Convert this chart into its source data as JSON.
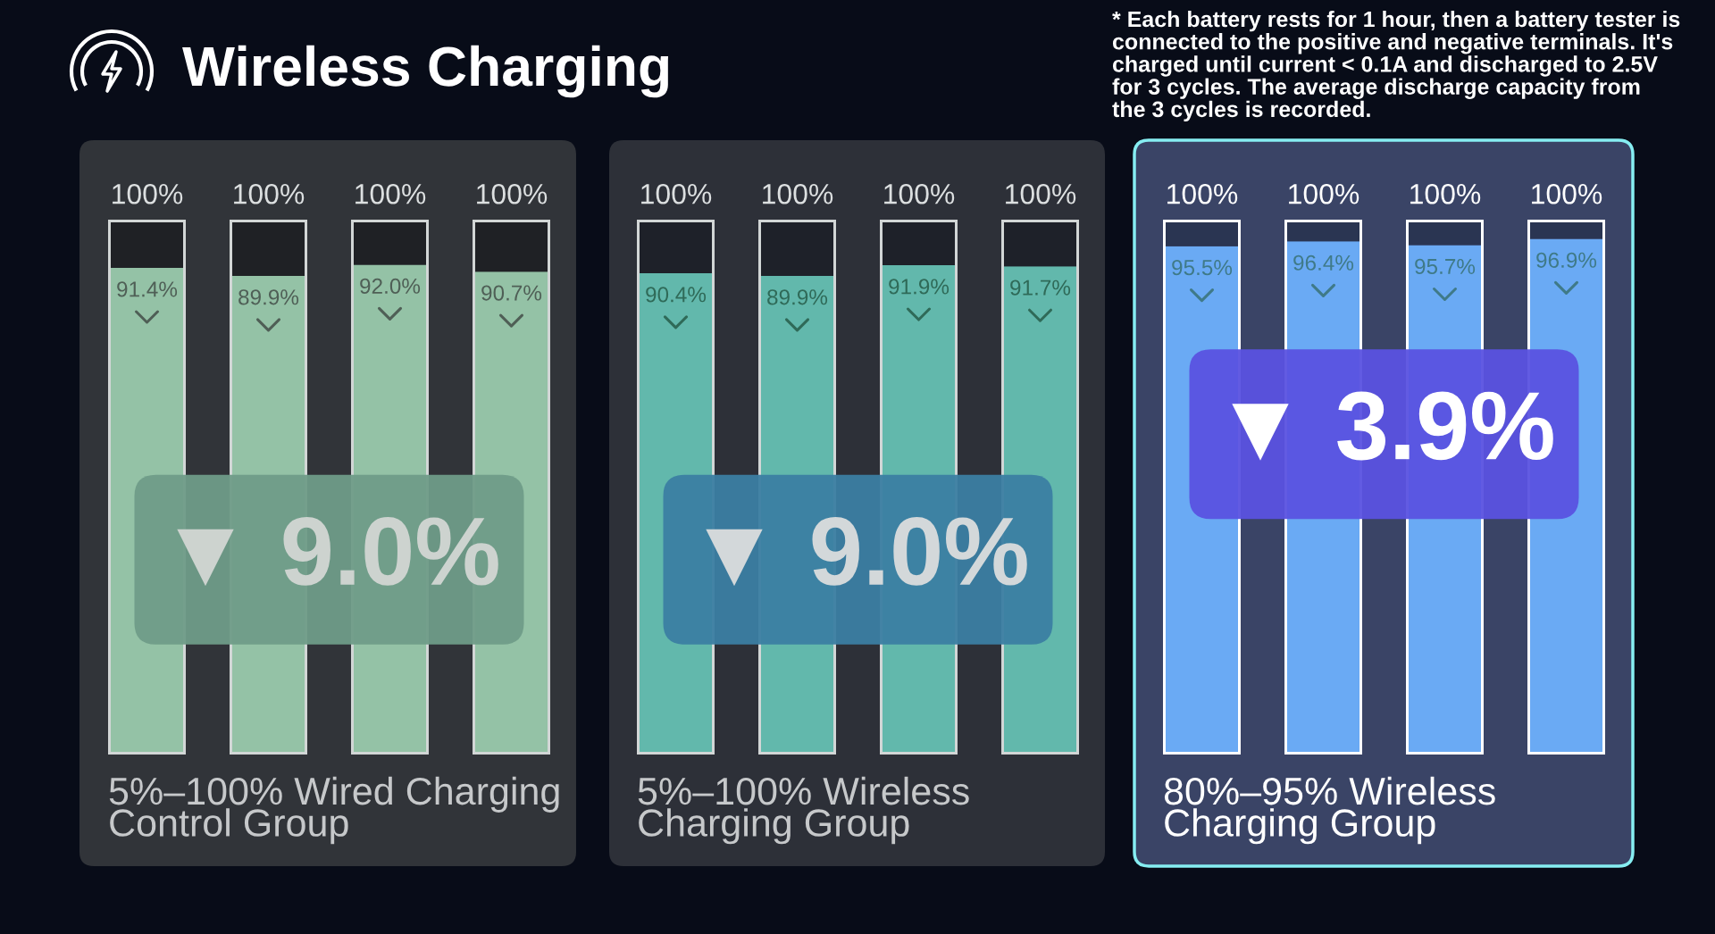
{
  "chart_data": [
    {
      "type": "bar",
      "title": "Wireless Charging",
      "categories": [
        null,
        null,
        null,
        null
      ],
      "stacked": true,
      "series": [
        {
          "color": "#94c2a6",
          "values": [
            91.4,
            89.9,
            92.0,
            90.7
          ],
          "value_labels": [
            "91.4%",
            "89.9%",
            "92.0%",
            "90.7%"
          ]
        },
        {
          "color": "#1f2125",
          "values": [
            8.6,
            10.1,
            8.0,
            9.3
          ]
        }
      ],
      "totals": [
        "100%",
        "100%",
        "100%",
        "100%"
      ],
      "ylim": [
        0,
        100
      ],
      "tick_labels": false,
      "xlabel": "5%–100% Wired Charging\nControl Group",
      "annotations": [
        "▼ 9.0%"
      ]
    },
    {
      "type": "bar",
      "categories": [
        null,
        null,
        null,
        null
      ],
      "stacked": true,
      "series": [
        {
          "color": "#62b8ac",
          "values": [
            90.4,
            89.9,
            91.9,
            91.7
          ],
          "value_labels": [
            "90.4%",
            "89.9%",
            "91.9%",
            "91.7%"
          ]
        },
        {
          "color": "#1e2129",
          "values": [
            9.6,
            10.1,
            8.1,
            8.3
          ]
        }
      ],
      "totals": [
        "100%",
        "100%",
        "100%",
        "100%"
      ],
      "ylim": [
        0,
        100
      ],
      "tick_labels": false,
      "xlabel": "5%–100% Wireless\nCharging Group",
      "annotations": [
        "▼ 9.0%"
      ]
    },
    {
      "type": "bar",
      "categories": [
        null,
        null,
        null,
        null
      ],
      "stacked": true,
      "series": [
        {
          "color": "#6aaaf4",
          "values": [
            95.5,
            96.4,
            95.7,
            96.9
          ],
          "value_labels": [
            "95.5%",
            "96.4%",
            "95.7%",
            "96.9%"
          ]
        },
        {
          "color": "#2a3552",
          "values": [
            4.5,
            3.6,
            4.3,
            3.1
          ]
        }
      ],
      "totals": [
        "100%",
        "100%",
        "100%",
        "100%"
      ],
      "ylim": [
        0,
        100
      ],
      "tick_labels": false,
      "xlabel": "80%–95% Wireless\nCharging Group",
      "annotations": [
        "▼ 3.9%",
        "* Each battery rests for 1 hour, then a battery tester is\nconnected to the positive and negative terminals. It's\ncharged until current < 0.1A and discharged to 2.5V\nfor 3 cycles. The average discharge capacity from\nthe 3 cycles is recorded."
      ]
    }
  ]
}
